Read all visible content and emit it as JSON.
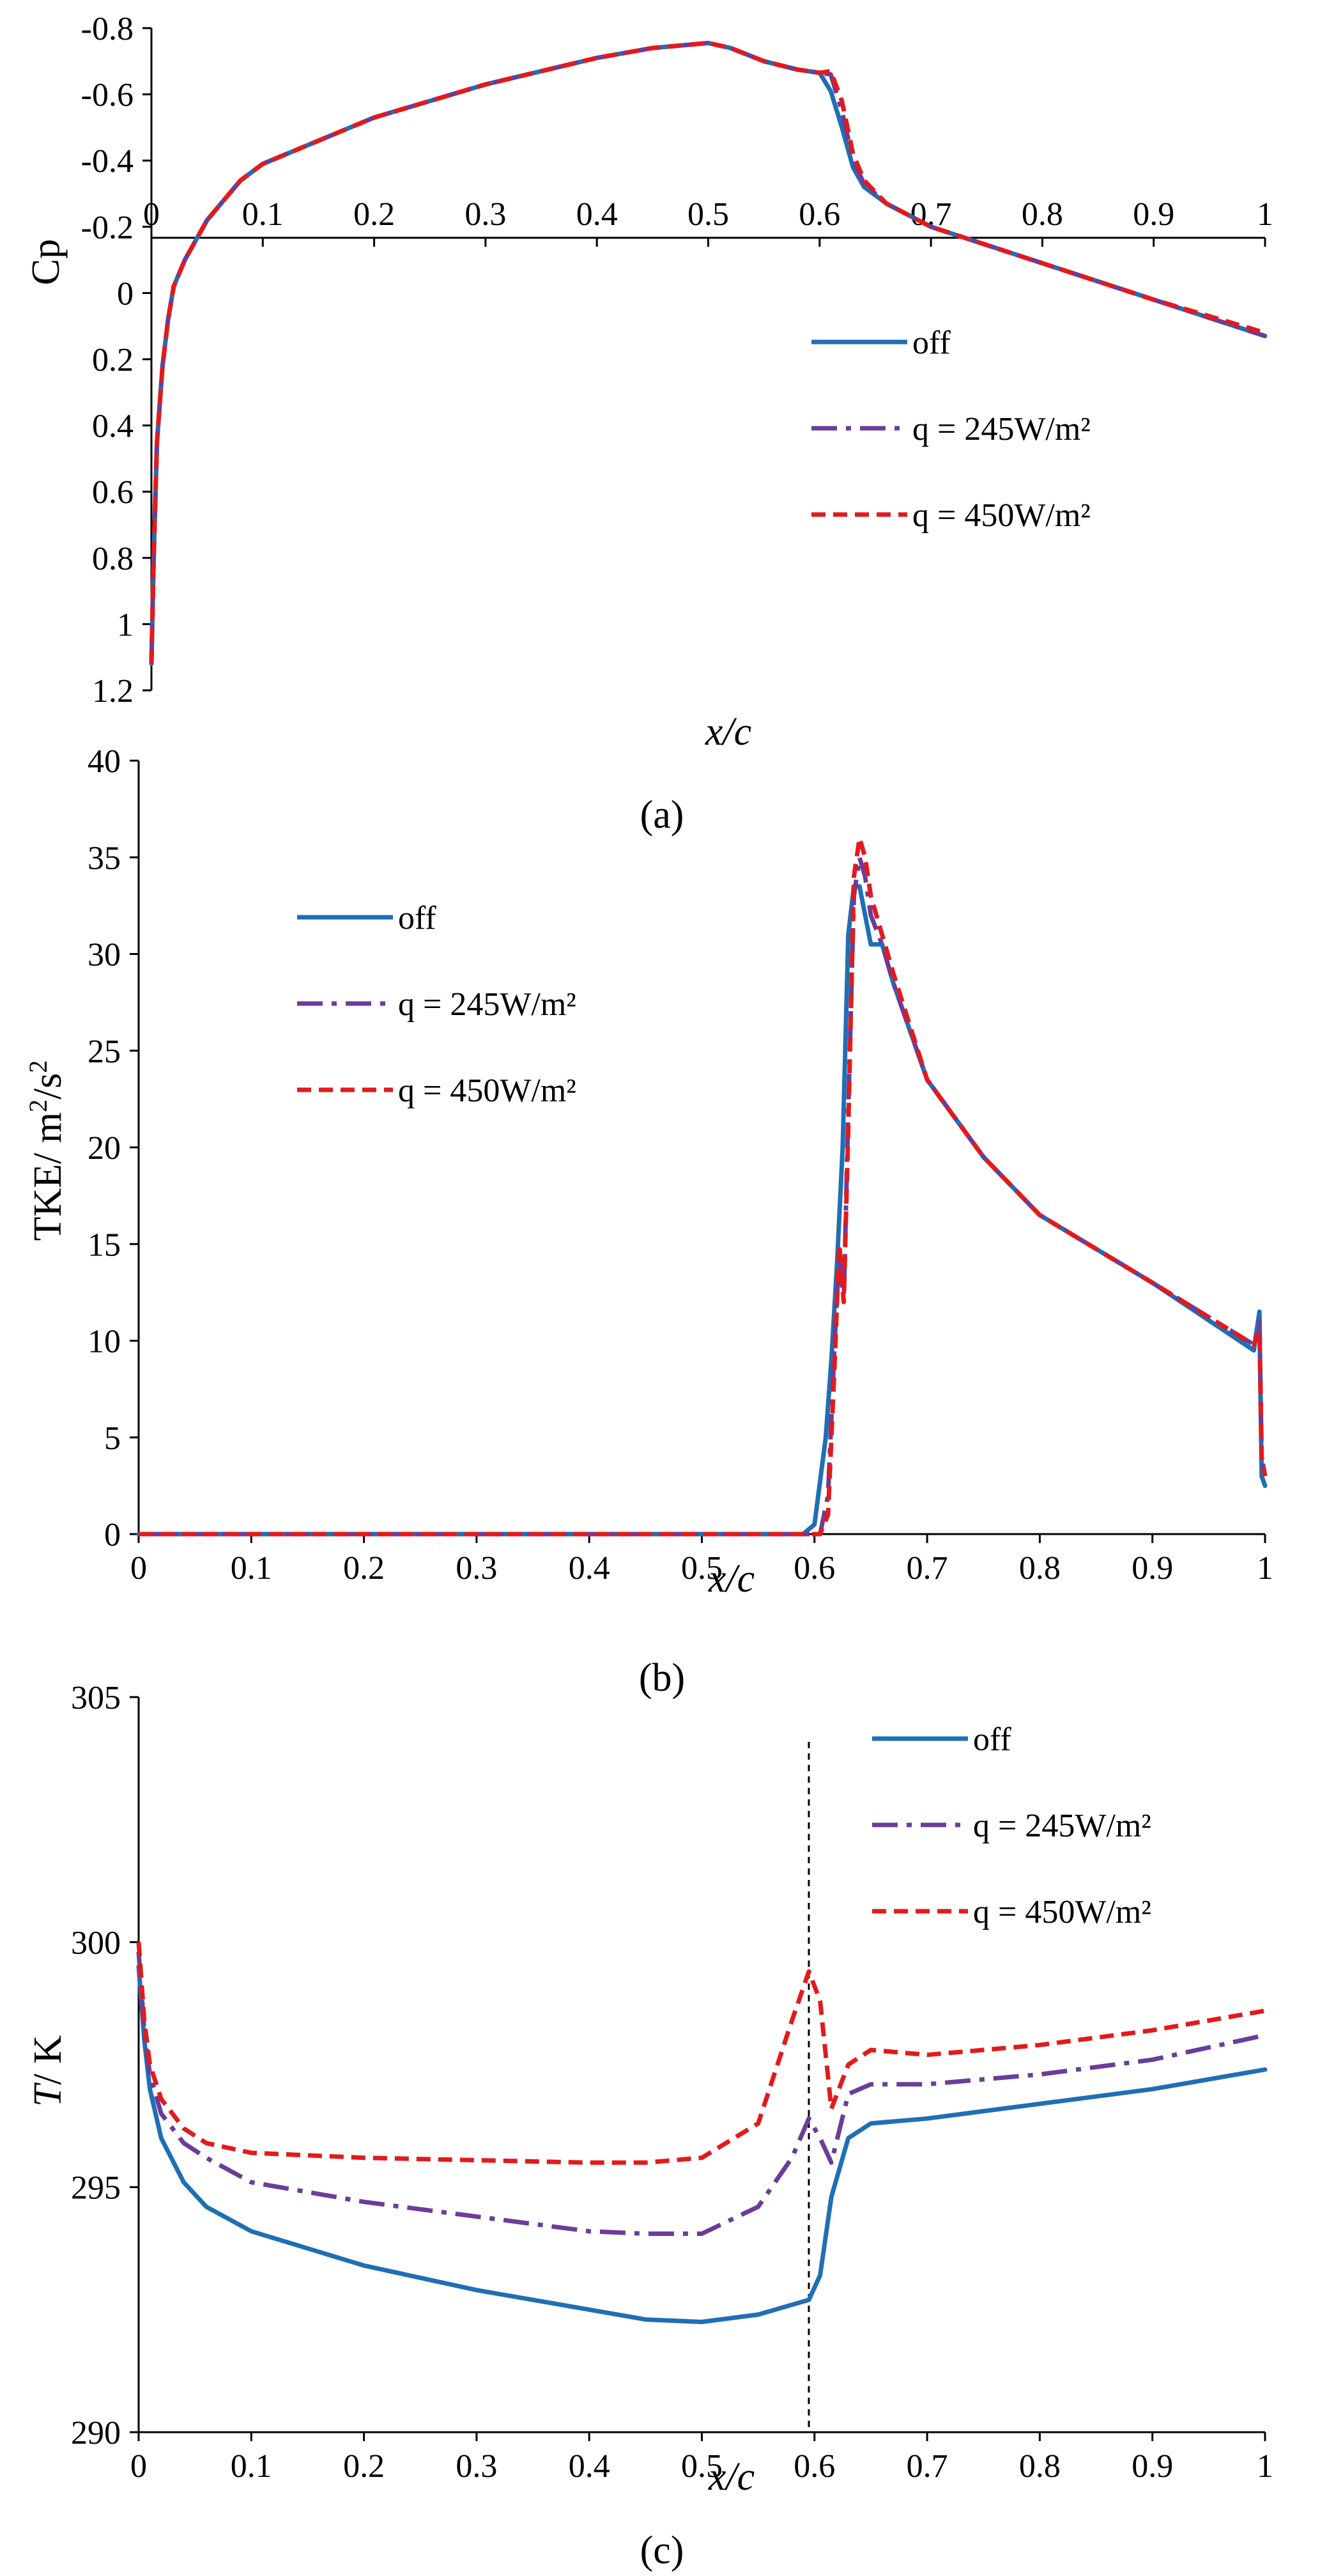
{
  "figure": {
    "captions": [
      "(a)",
      "(b)",
      "(c)"
    ]
  },
  "series_styles": {
    "off": {
      "color": "#1f6fb4",
      "dash": "solid"
    },
    "q245": {
      "color": "#6a3d9a",
      "dash": "dashdot"
    },
    "q450": {
      "color": "#e31a1c",
      "dash": "dashed"
    }
  },
  "chart_data": [
    {
      "type": "line",
      "panel": "(a)",
      "title": "",
      "xlabel": "x/c",
      "ylabel": "Cp",
      "xlim": [
        0,
        1
      ],
      "ylim": [
        -0.8,
        1.2
      ],
      "y_inverted": true,
      "xticks": [
        "0",
        "0.1",
        "0.2",
        "0.3",
        "0.4",
        "0.5",
        "0.6",
        "0.7",
        "0.8",
        "0.9",
        "1"
      ],
      "yticks": [
        "-0.8",
        "-0.6",
        "-0.4",
        "-0.2",
        "0",
        "0.2",
        "0.4",
        "0.6",
        "0.8",
        "1",
        "1.2"
      ],
      "legend": [
        "off",
        "q = 245W/m²",
        "q = 450W/m²"
      ],
      "legend_position": "right",
      "series": [
        {
          "name": "off",
          "style": "off",
          "x": [
            0.0,
            0.002,
            0.005,
            0.01,
            0.015,
            0.02,
            0.03,
            0.05,
            0.08,
            0.1,
            0.15,
            0.2,
            0.3,
            0.4,
            0.45,
            0.5,
            0.52,
            0.55,
            0.58,
            0.6,
            0.61,
            0.62,
            0.63,
            0.64,
            0.66,
            0.7,
            0.8,
            0.9,
            1.0
          ],
          "y": [
            1.12,
            0.8,
            0.45,
            0.22,
            0.08,
            -0.02,
            -0.1,
            -0.22,
            -0.34,
            -0.39,
            -0.46,
            -0.53,
            -0.63,
            -0.71,
            -0.74,
            -0.755,
            -0.74,
            -0.7,
            -0.675,
            -0.665,
            -0.61,
            -0.5,
            -0.38,
            -0.32,
            -0.27,
            -0.2,
            -0.09,
            0.02,
            0.13
          ]
        },
        {
          "name": "q = 245W/m²",
          "style": "q245",
          "x": [
            0.0,
            0.002,
            0.005,
            0.01,
            0.015,
            0.02,
            0.03,
            0.05,
            0.08,
            0.1,
            0.15,
            0.2,
            0.3,
            0.4,
            0.45,
            0.5,
            0.52,
            0.55,
            0.58,
            0.6,
            0.61,
            0.62,
            0.63,
            0.64,
            0.66,
            0.7,
            0.8,
            0.9,
            1.0
          ],
          "y": [
            1.12,
            0.8,
            0.45,
            0.22,
            0.08,
            -0.02,
            -0.1,
            -0.22,
            -0.34,
            -0.39,
            -0.46,
            -0.53,
            -0.63,
            -0.71,
            -0.74,
            -0.755,
            -0.74,
            -0.7,
            -0.675,
            -0.665,
            -0.66,
            -0.55,
            -0.4,
            -0.33,
            -0.27,
            -0.2,
            -0.09,
            0.02,
            0.13
          ]
        },
        {
          "name": "q = 450W/m²",
          "style": "q450",
          "x": [
            0.0,
            0.002,
            0.005,
            0.01,
            0.015,
            0.02,
            0.03,
            0.05,
            0.08,
            0.1,
            0.15,
            0.2,
            0.3,
            0.4,
            0.45,
            0.5,
            0.52,
            0.55,
            0.58,
            0.6,
            0.61,
            0.62,
            0.63,
            0.64,
            0.66,
            0.7,
            0.8,
            0.9,
            1.0
          ],
          "y": [
            1.12,
            0.8,
            0.45,
            0.22,
            0.08,
            -0.02,
            -0.1,
            -0.22,
            -0.34,
            -0.39,
            -0.46,
            -0.53,
            -0.63,
            -0.71,
            -0.74,
            -0.755,
            -0.74,
            -0.7,
            -0.675,
            -0.665,
            -0.67,
            -0.58,
            -0.42,
            -0.34,
            -0.27,
            -0.2,
            -0.09,
            0.02,
            0.12
          ]
        }
      ]
    },
    {
      "type": "line",
      "panel": "(b)",
      "title": "",
      "xlabel": "x/c",
      "ylabel": "TKE/ m²/s²",
      "xlim": [
        0,
        1
      ],
      "ylim": [
        0,
        40
      ],
      "y_inverted": false,
      "xticks": [
        "0",
        "0.1",
        "0.2",
        "0.3",
        "0.4",
        "0.5",
        "0.6",
        "0.7",
        "0.8",
        "0.9",
        "1"
      ],
      "yticks": [
        "0",
        "5",
        "10",
        "15",
        "20",
        "25",
        "30",
        "35",
        "40"
      ],
      "legend": [
        "off",
        "q = 245W/m²",
        "q = 450W/m²"
      ],
      "legend_position": "top-left",
      "series": [
        {
          "name": "off",
          "style": "off",
          "x": [
            0.0,
            0.2,
            0.4,
            0.59,
            0.6,
            0.61,
            0.615,
            0.62,
            0.625,
            0.63,
            0.635,
            0.64,
            0.645,
            0.65,
            0.66,
            0.67,
            0.7,
            0.75,
            0.8,
            0.9,
            0.99,
            0.995,
            0.997,
            1.0
          ],
          "y": [
            0,
            0,
            0,
            0,
            0.5,
            5,
            9,
            14,
            20,
            31,
            33.5,
            33.5,
            32,
            30.5,
            30.5,
            28.5,
            23.5,
            19.5,
            16.5,
            13,
            9.5,
            11.5,
            3,
            2.5
          ]
        },
        {
          "name": "q = 245W/m²",
          "style": "q245",
          "x": [
            0.0,
            0.2,
            0.4,
            0.6,
            0.605,
            0.612,
            0.618,
            0.622,
            0.626,
            0.63,
            0.635,
            0.64,
            0.645,
            0.65,
            0.66,
            0.67,
            0.7,
            0.75,
            0.8,
            0.9,
            0.99,
            0.995,
            0.997,
            1.0
          ],
          "y": [
            0,
            0,
            0,
            0,
            0,
            2,
            10,
            14.5,
            12,
            22,
            33,
            35,
            34,
            32,
            30.5,
            28.5,
            23.5,
            19.5,
            16.5,
            13,
            9.8,
            11,
            4,
            3
          ]
        },
        {
          "name": "q = 450W/m²",
          "style": "q450",
          "x": [
            0.0,
            0.2,
            0.4,
            0.6,
            0.605,
            0.612,
            0.618,
            0.622,
            0.626,
            0.63,
            0.635,
            0.64,
            0.645,
            0.65,
            0.66,
            0.67,
            0.7,
            0.75,
            0.8,
            0.9,
            0.99,
            0.995,
            0.997,
            1.0
          ],
          "y": [
            0,
            0,
            0,
            0,
            0,
            1,
            9,
            15,
            12,
            21,
            34,
            36,
            35,
            33,
            31,
            29,
            23.5,
            19.5,
            16.5,
            13,
            9.8,
            10.5,
            4,
            3
          ]
        }
      ]
    },
    {
      "type": "line",
      "panel": "(c)",
      "title": "",
      "xlabel": "x/c",
      "ylabel": "T/ K",
      "xlim": [
        0,
        1
      ],
      "ylim": [
        290,
        305
      ],
      "y_inverted": false,
      "xticks": [
        "0",
        "0.1",
        "0.2",
        "0.3",
        "0.4",
        "0.5",
        "0.6",
        "0.7",
        "0.8",
        "0.9",
        "1"
      ],
      "yticks": [
        "290",
        "295",
        "300",
        "305"
      ],
      "vline_x": 0.595,
      "legend": [
        "off",
        "q = 245W/m²",
        "q = 450W/m²"
      ],
      "legend_position": "top-right",
      "series": [
        {
          "name": "off",
          "style": "off",
          "x": [
            0.0,
            0.005,
            0.01,
            0.02,
            0.04,
            0.06,
            0.1,
            0.2,
            0.3,
            0.4,
            0.45,
            0.5,
            0.55,
            0.58,
            0.595,
            0.605,
            0.615,
            0.63,
            0.65,
            0.7,
            0.8,
            0.9,
            1.0
          ],
          "y": [
            299.5,
            298,
            297,
            296,
            295.1,
            294.6,
            294.1,
            293.4,
            292.9,
            292.5,
            292.3,
            292.25,
            292.4,
            292.6,
            292.7,
            293.2,
            294.8,
            296.0,
            296.3,
            296.4,
            296.7,
            297.0,
            297.4
          ]
        },
        {
          "name": "q = 245W/m²",
          "style": "q245",
          "x": [
            0.0,
            0.005,
            0.01,
            0.02,
            0.04,
            0.06,
            0.1,
            0.2,
            0.3,
            0.4,
            0.45,
            0.5,
            0.55,
            0.58,
            0.595,
            0.605,
            0.615,
            0.63,
            0.65,
            0.7,
            0.8,
            0.9,
            1.0
          ],
          "y": [
            299.8,
            298.2,
            297.3,
            296.5,
            295.9,
            295.6,
            295.1,
            294.7,
            294.4,
            294.1,
            294.05,
            294.05,
            294.6,
            295.6,
            296.4,
            296.0,
            295.5,
            296.9,
            297.1,
            297.1,
            297.3,
            297.6,
            298.1
          ]
        },
        {
          "name": "q = 450W/m²",
          "style": "q450",
          "x": [
            0.0,
            0.005,
            0.01,
            0.02,
            0.04,
            0.06,
            0.1,
            0.2,
            0.3,
            0.4,
            0.45,
            0.5,
            0.55,
            0.58,
            0.595,
            0.605,
            0.615,
            0.63,
            0.65,
            0.7,
            0.8,
            0.9,
            1.0
          ],
          "y": [
            300,
            298.4,
            297.5,
            296.8,
            296.2,
            295.9,
            295.7,
            295.6,
            295.55,
            295.5,
            295.5,
            295.6,
            296.3,
            298.4,
            299.4,
            298.8,
            296.6,
            297.5,
            297.8,
            297.7,
            297.9,
            298.2,
            298.6
          ]
        }
      ]
    }
  ]
}
